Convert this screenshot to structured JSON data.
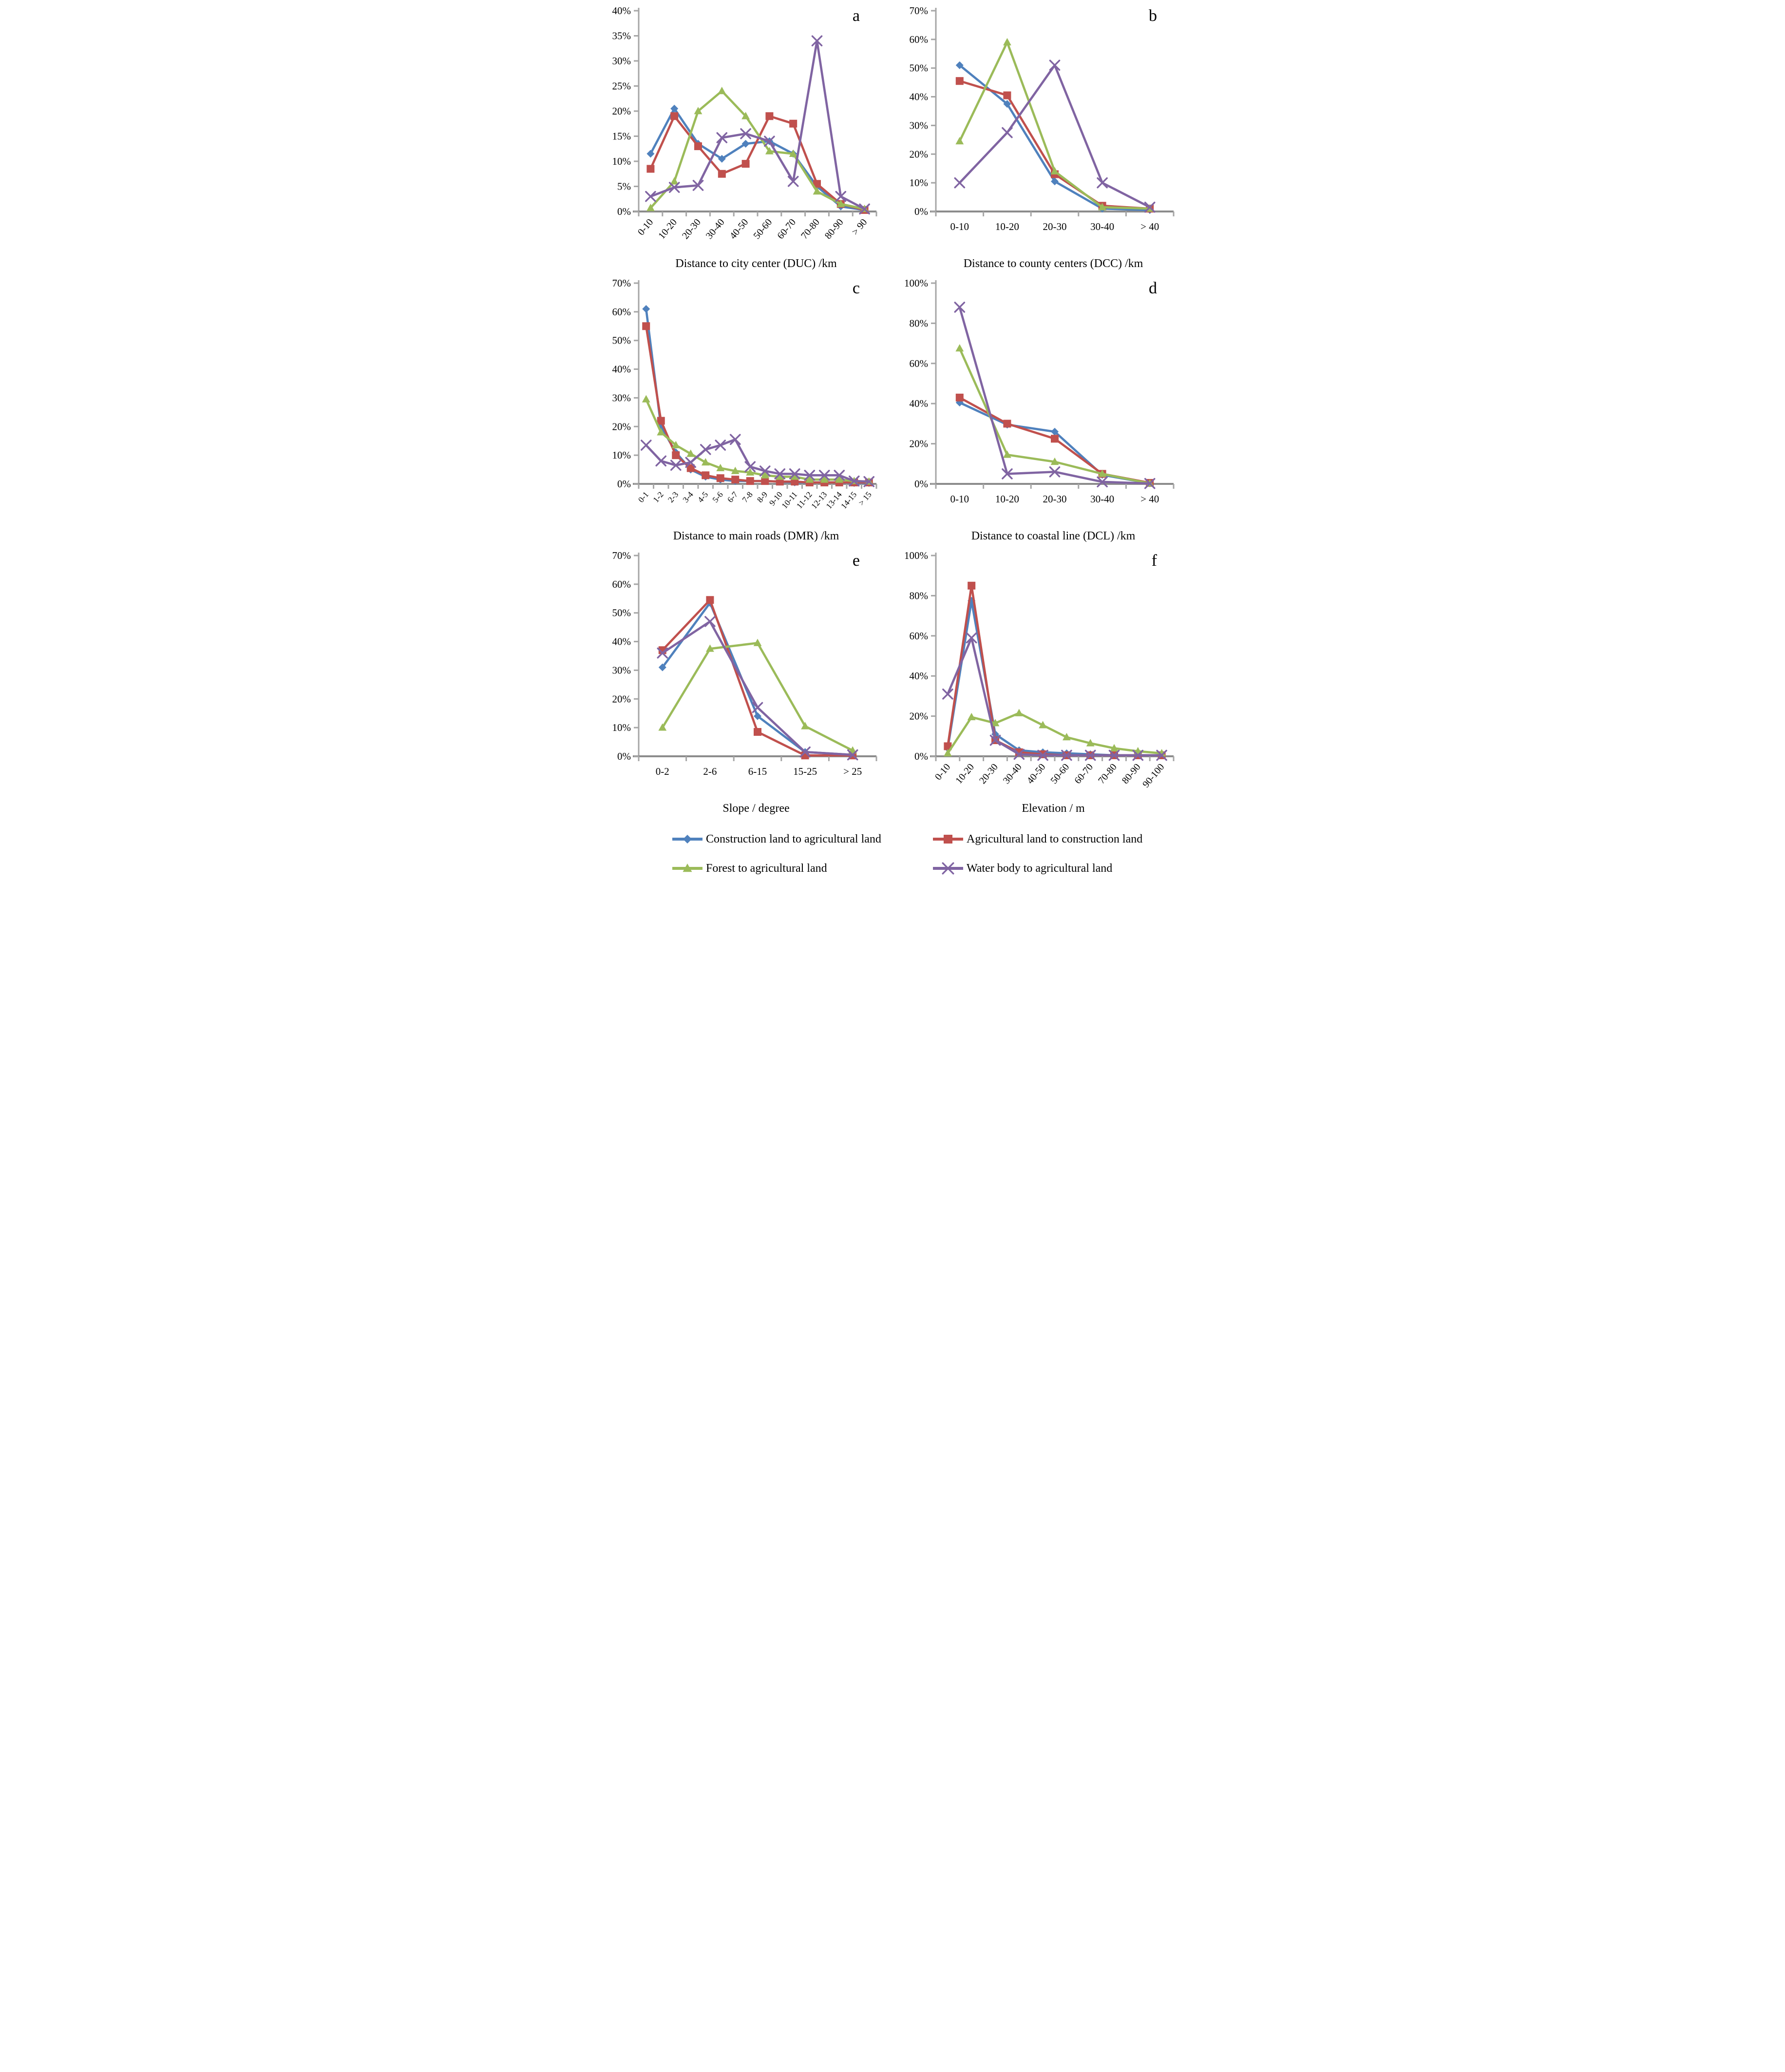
{
  "colors": {
    "blue": "#4F81BD",
    "red": "#C0504D",
    "green": "#9BBB59",
    "purple": "#8064A2",
    "axis": "#A6A6A6",
    "x_axis": "#8C8C8C"
  },
  "legend": {
    "items": [
      {
        "label": "Construction land to agricultural land",
        "color_key": "blue",
        "marker": "diamond"
      },
      {
        "label": "Agricultural land to construction land",
        "color_key": "red",
        "marker": "square"
      },
      {
        "label": "Forest to agricultural land",
        "color_key": "green",
        "marker": "triangle"
      },
      {
        "label": "Water body to agricultural land",
        "color_key": "purple",
        "marker": "x"
      }
    ]
  },
  "chart_data": [
    {
      "type": "line",
      "panel_label": "a",
      "xlabel": "Distance to city center (DUC) /km",
      "ylabel": "",
      "ylim": [
        0,
        40
      ],
      "ytick_step": 5,
      "ytick_format": "percent",
      "grid": false,
      "x_labels_rotated": true,
      "categories": [
        "0-10",
        "10-20",
        "20-30",
        "30-40",
        "40-50",
        "50-60",
        "60-70",
        "70-80",
        "80-90",
        "> 90"
      ],
      "series": [
        {
          "name": "Construction land to agricultural land",
          "color_key": "blue",
          "marker": "diamond",
          "values": [
            11.5,
            20.5,
            13.5,
            10.5,
            13.5,
            14,
            11.5,
            5,
            1,
            0.3
          ]
        },
        {
          "name": "Agricultural land to construction land",
          "color_key": "red",
          "marker": "square",
          "values": [
            8.5,
            19,
            13,
            7.5,
            9.5,
            19,
            17.5,
            5.5,
            1.5,
            0.3
          ]
        },
        {
          "name": "Forest to agricultural land",
          "color_key": "green",
          "marker": "triangle",
          "values": [
            0.7,
            6,
            20,
            24,
            19,
            12,
            11.5,
            4,
            1.5,
            0.5
          ]
        },
        {
          "name": "Water body to agricultural land",
          "color_key": "purple",
          "marker": "x",
          "values": [
            3,
            4.8,
            5.2,
            14.7,
            15.5,
            14,
            6,
            34,
            3,
            0.5
          ]
        }
      ]
    },
    {
      "type": "line",
      "panel_label": "b",
      "xlabel": "Distance to county centers (DCC) /km",
      "ylabel": "",
      "ylim": [
        0,
        70
      ],
      "ytick_step": 10,
      "ytick_format": "percent",
      "grid": false,
      "x_labels_rotated": false,
      "categories": [
        "0-10",
        "10-20",
        "20-30",
        "30-40",
        "> 40"
      ],
      "series": [
        {
          "name": "Construction land to agricultural land",
          "color_key": "blue",
          "marker": "diamond",
          "values": [
            51,
            37.5,
            10.5,
            1,
            0.5
          ]
        },
        {
          "name": "Agricultural land to construction land",
          "color_key": "red",
          "marker": "square",
          "values": [
            45.5,
            40.5,
            13,
            2,
            1
          ]
        },
        {
          "name": "Forest to agricultural land",
          "color_key": "green",
          "marker": "triangle",
          "values": [
            24.5,
            59,
            14,
            1.5,
            1
          ]
        },
        {
          "name": "Water body to agricultural land",
          "color_key": "purple",
          "marker": "x",
          "values": [
            10,
            27.5,
            51,
            10,
            1.5
          ]
        }
      ]
    },
    {
      "type": "line",
      "panel_label": "c",
      "xlabel": "Distance to main roads (DMR) /km",
      "ylabel": "",
      "ylim": [
        0,
        70
      ],
      "ytick_step": 10,
      "ytick_format": "percent",
      "grid": false,
      "x_labels_rotated": true,
      "categories": [
        "0-1",
        "1-2",
        "2-3",
        "3-4",
        "4-5",
        "5-6",
        "6-7",
        "7-8",
        "8-9",
        "9-10",
        "10-11",
        "11-12",
        "12-13",
        "13-14",
        "14-15",
        "> 15"
      ],
      "series": [
        {
          "name": "Construction land to agricultural land",
          "color_key": "blue",
          "marker": "diamond",
          "values": [
            61,
            20,
            11,
            5,
            2.5,
            1.5,
            1,
            1,
            1,
            0.8,
            0.5,
            0.5,
            0.5,
            0.5,
            0.3,
            0.3
          ]
        },
        {
          "name": "Agricultural land to construction land",
          "color_key": "red",
          "marker": "square",
          "values": [
            55,
            22,
            10,
            5.5,
            3,
            2,
            1.5,
            1,
            1,
            0.8,
            0.8,
            0.5,
            0.5,
            0.5,
            0.5,
            0.5
          ]
        },
        {
          "name": "Forest to agricultural land",
          "color_key": "green",
          "marker": "triangle",
          "values": [
            29.5,
            18,
            13.5,
            10.5,
            7.5,
            5.5,
            4.5,
            4,
            3,
            2.5,
            2.5,
            1.5,
            1.5,
            1.5,
            1,
            0.8
          ]
        },
        {
          "name": "Water body to agricultural land",
          "color_key": "purple",
          "marker": "x",
          "values": [
            13.5,
            8,
            6.5,
            7.5,
            12,
            13.5,
            15.5,
            6,
            4.5,
            3.5,
            3.5,
            3,
            3,
            3,
            1,
            0.8
          ]
        }
      ]
    },
    {
      "type": "line",
      "panel_label": "d",
      "xlabel": "Distance to coastal line (DCL) /km",
      "ylabel": "",
      "ylim": [
        0,
        100
      ],
      "ytick_step": 20,
      "ytick_format": "percent",
      "grid": false,
      "x_labels_rotated": false,
      "categories": [
        "0-10",
        "10-20",
        "20-30",
        "30-40",
        "> 40"
      ],
      "series": [
        {
          "name": "Construction land to agricultural land",
          "color_key": "blue",
          "marker": "diamond",
          "values": [
            40.5,
            29.5,
            26,
            4.5,
            0.3
          ]
        },
        {
          "name": "Agricultural land to construction land",
          "color_key": "red",
          "marker": "square",
          "values": [
            43,
            30,
            22.5,
            5,
            0.5
          ]
        },
        {
          "name": "Forest to agricultural land",
          "color_key": "green",
          "marker": "triangle",
          "values": [
            67.5,
            14.5,
            11,
            5,
            0.2
          ]
        },
        {
          "name": "Water body to agricultural land",
          "color_key": "purple",
          "marker": "x",
          "values": [
            88,
            5,
            6,
            1,
            0.2
          ]
        }
      ]
    },
    {
      "type": "line",
      "panel_label": "e",
      "xlabel": "Slope / degree",
      "ylabel": "",
      "ylim": [
        0,
        70
      ],
      "ytick_step": 10,
      "ytick_format": "percent",
      "grid": false,
      "x_labels_rotated": false,
      "categories": [
        "0-2",
        "2-6",
        "6-15",
        "15-25",
        "> 25"
      ],
      "series": [
        {
          "name": "Construction land to agricultural land",
          "color_key": "blue",
          "marker": "diamond",
          "values": [
            31,
            53.5,
            14,
            1.5,
            0.5
          ]
        },
        {
          "name": "Agricultural land to construction land",
          "color_key": "red",
          "marker": "square",
          "values": [
            37,
            54.5,
            8.5,
            0.3,
            0.3
          ]
        },
        {
          "name": "Forest to agricultural land",
          "color_key": "green",
          "marker": "triangle",
          "values": [
            10,
            37.5,
            39.5,
            10.5,
            2
          ]
        },
        {
          "name": "Water body to agricultural land",
          "color_key": "purple",
          "marker": "x",
          "values": [
            36,
            47,
            17,
            1.5,
            0.5
          ]
        }
      ]
    },
    {
      "type": "line",
      "panel_label": "f",
      "xlabel": "Elevation / m",
      "ylabel": "",
      "ylim": [
        0,
        100
      ],
      "ytick_step": 20,
      "ytick_format": "percent",
      "grid": false,
      "x_labels_rotated": true,
      "categories": [
        "0-10",
        "10-20",
        "20-30",
        "30-40",
        "40-50",
        "50-60",
        "60-70",
        "70-80",
        "80-90",
        "90-100"
      ],
      "series": [
        {
          "name": "Construction land to agricultural land",
          "color_key": "blue",
          "marker": "diamond",
          "values": [
            4,
            77.5,
            11,
            3,
            2,
            1.5,
            1,
            0.5,
            0.5,
            0.5
          ]
        },
        {
          "name": "Agricultural land to construction land",
          "color_key": "red",
          "marker": "square",
          "values": [
            5,
            85,
            8,
            2,
            1,
            0.5,
            0.5,
            0.5,
            0.5,
            0.5
          ]
        },
        {
          "name": "Forest to agricultural land",
          "color_key": "green",
          "marker": "triangle",
          "values": [
            1.5,
            19.5,
            16.5,
            21.5,
            15.5,
            9.5,
            6.5,
            4,
            2.5,
            1.5
          ]
        },
        {
          "name": "Water body to agricultural land",
          "color_key": "purple",
          "marker": "x",
          "values": [
            31,
            59,
            8,
            1,
            0.5,
            0.5,
            0.5,
            0.5,
            0.5,
            0.5
          ]
        }
      ]
    }
  ]
}
